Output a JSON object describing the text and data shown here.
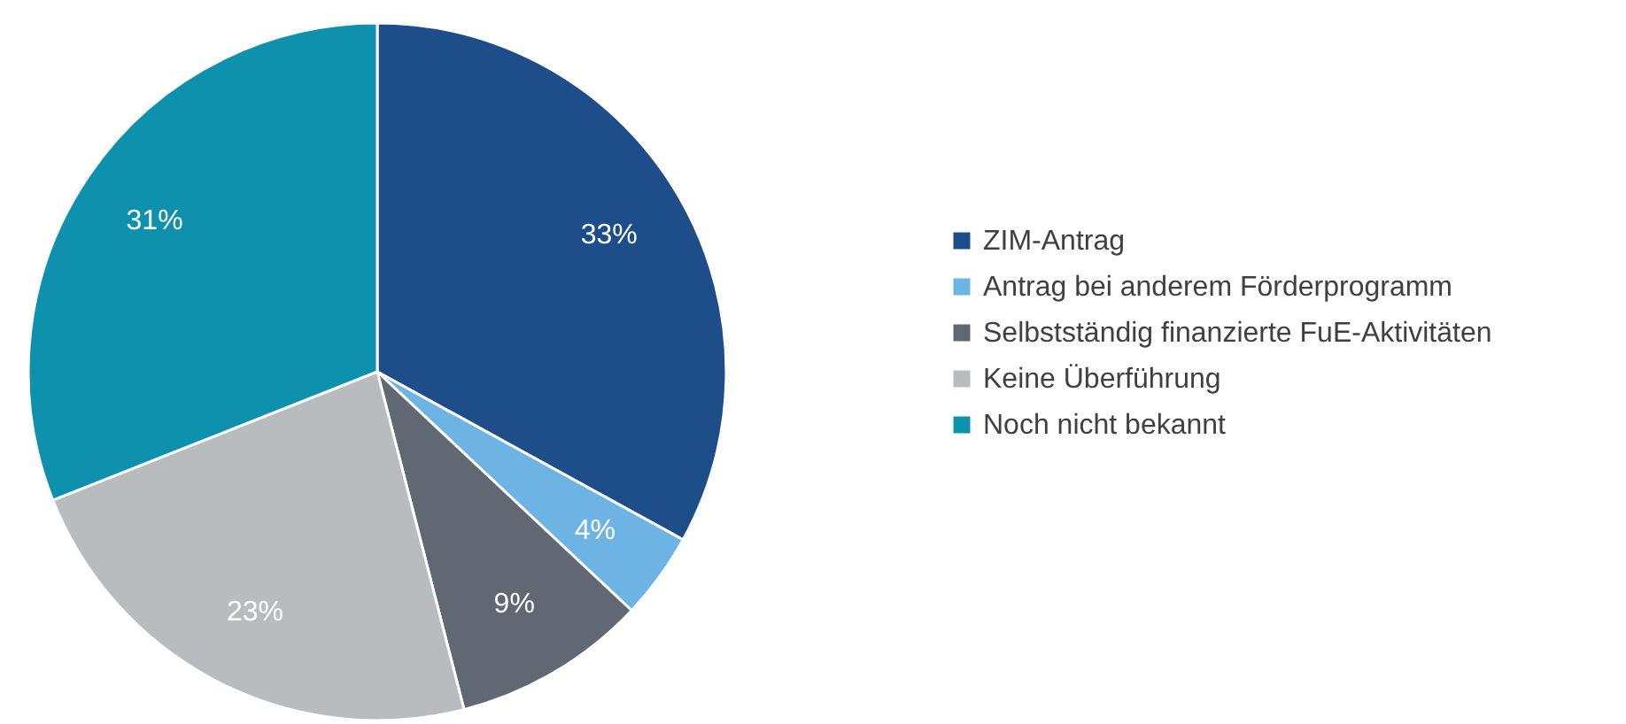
{
  "chart_data": {
    "type": "pie",
    "categories": [
      "ZIM-Antrag",
      "Antrag bei anderem Förderprogramm",
      "Selbstständig finanzierte FuE-Aktivitäten",
      "Keine Überführung",
      "Noch nicht bekannt"
    ],
    "values": [
      33,
      4,
      9,
      23,
      31
    ],
    "colors": [
      "#1d4e89",
      "#6db3e3",
      "#5f6873",
      "#b9bcbf",
      "#0e91ad"
    ],
    "value_labels": [
      "33%",
      "4%",
      "9%",
      "23%",
      "31%"
    ],
    "legend": "right"
  }
}
